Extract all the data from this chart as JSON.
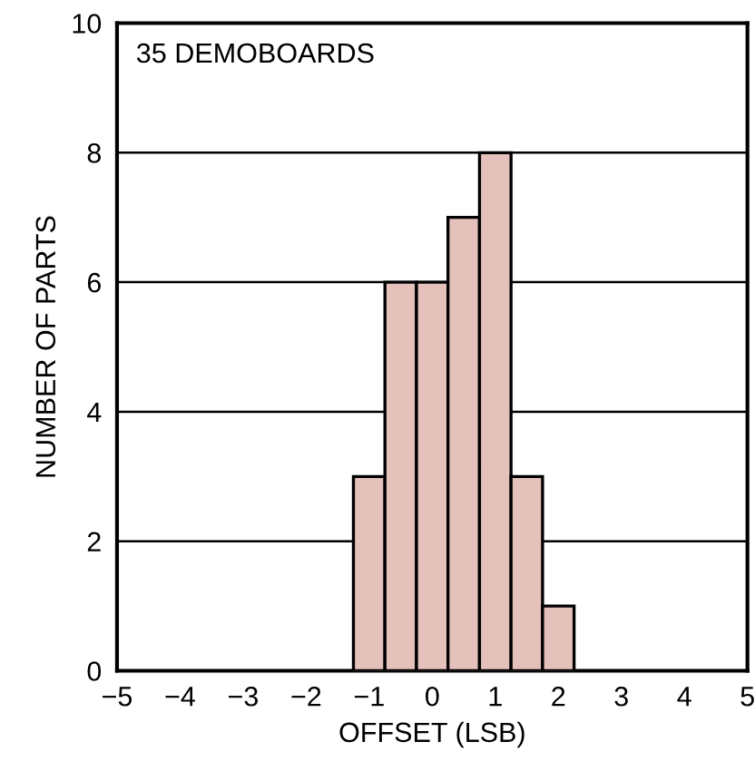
{
  "chart_data": {
    "type": "histogram",
    "xlabel": "OFFSET (LSB)",
    "ylabel": "NUMBER OF PARTS",
    "bins": [
      -1.25,
      -0.75,
      -0.25,
      0.25,
      0.75,
      1.25,
      1.75,
      2.25
    ],
    "values": [
      3,
      6,
      6,
      7,
      8,
      3,
      1
    ],
    "color": "#e4c1bb",
    "xlim": [
      -5,
      5
    ],
    "xticks": [
      -5,
      -4,
      -3,
      -2,
      -1,
      0,
      1,
      2,
      3,
      4,
      5
    ],
    "ylim": [
      0,
      10
    ],
    "yticks": [
      0,
      2,
      4,
      6,
      8,
      10
    ],
    "grid": "y",
    "annotations": [
      "35 DEMOBOARDS"
    ]
  }
}
